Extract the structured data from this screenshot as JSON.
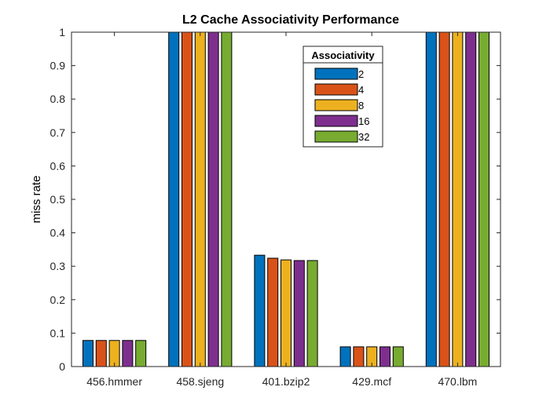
{
  "chart_data": {
    "type": "bar",
    "title": "L2 Cache Associativity Performance",
    "xlabel": "",
    "ylabel": "miss rate",
    "ylim": [
      0,
      1
    ],
    "yticks": [
      0,
      0.1,
      0.2,
      0.3,
      0.4,
      0.5,
      0.6,
      0.7,
      0.8,
      0.9,
      1
    ],
    "categories": [
      "456.hmmer",
      "458.sjeng",
      "401.bzip2",
      "429.mcf",
      "470.lbm"
    ],
    "legend_title": "Associativity",
    "legend_position": "top-right",
    "grid": false,
    "series": [
      {
        "name": "2",
        "color": "#0072BD",
        "values": [
          0.078,
          1.0,
          0.333,
          0.059,
          1.0
        ]
      },
      {
        "name": "4",
        "color": "#D95319",
        "values": [
          0.078,
          1.0,
          0.324,
          0.059,
          1.0
        ]
      },
      {
        "name": "8",
        "color": "#EDB120",
        "values": [
          0.078,
          1.0,
          0.319,
          0.059,
          1.0
        ]
      },
      {
        "name": "16",
        "color": "#7E2F8E",
        "values": [
          0.078,
          1.0,
          0.317,
          0.059,
          1.0
        ]
      },
      {
        "name": "32",
        "color": "#77AC30",
        "values": [
          0.078,
          1.0,
          0.317,
          0.059,
          1.0
        ]
      }
    ]
  }
}
